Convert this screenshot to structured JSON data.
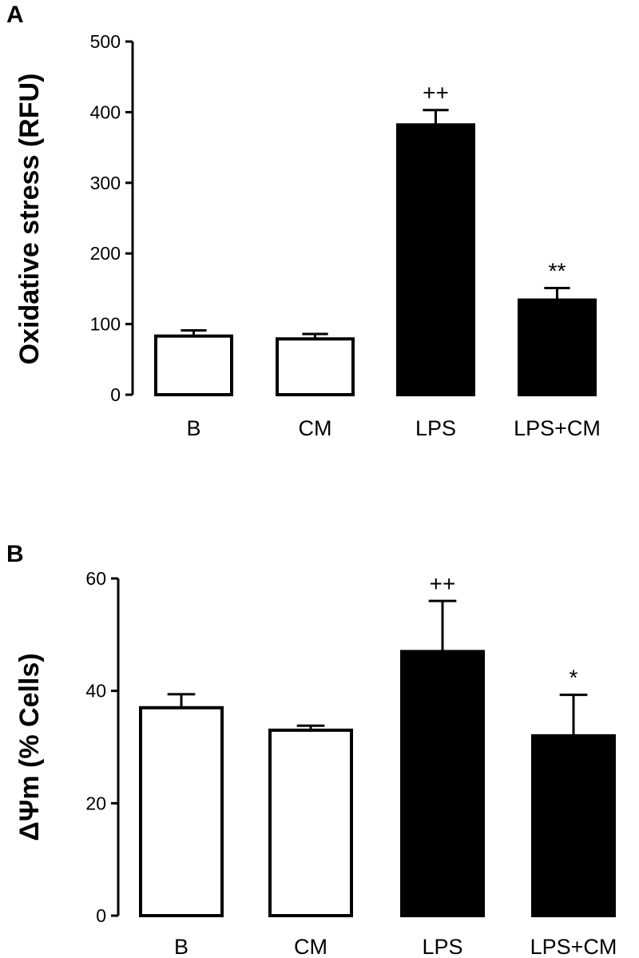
{
  "chart_data": [
    {
      "panel": "A",
      "type": "bar",
      "categories": [
        "B",
        "CM",
        "LPS",
        "LPS+CM"
      ],
      "values": [
        83,
        79,
        382,
        134
      ],
      "errors": [
        8,
        7,
        21,
        17
      ],
      "fills": [
        "#ffffff",
        "#ffffff",
        "#000000",
        "#000000"
      ],
      "significance": [
        "",
        "",
        "++",
        "**"
      ],
      "ylabel": "Oxidative stress (RFU)",
      "xlabel": "",
      "ylim": [
        0,
        500
      ],
      "yticks": [
        0,
        100,
        200,
        300,
        400,
        500
      ]
    },
    {
      "panel": "B",
      "type": "bar",
      "categories": [
        "B",
        "CM",
        "LPS",
        "LPS+CM"
      ],
      "values": [
        37,
        33,
        47,
        32
      ],
      "errors": [
        2.4,
        0.8,
        9,
        7.3
      ],
      "fills": [
        "#ffffff",
        "#ffffff",
        "#000000",
        "#000000"
      ],
      "significance": [
        "",
        "",
        "++",
        "*"
      ],
      "ylabel": "ΔΨm (% Cells)",
      "xlabel": "",
      "ylim": [
        0,
        60
      ],
      "yticks": [
        0,
        20,
        40,
        60
      ]
    }
  ]
}
